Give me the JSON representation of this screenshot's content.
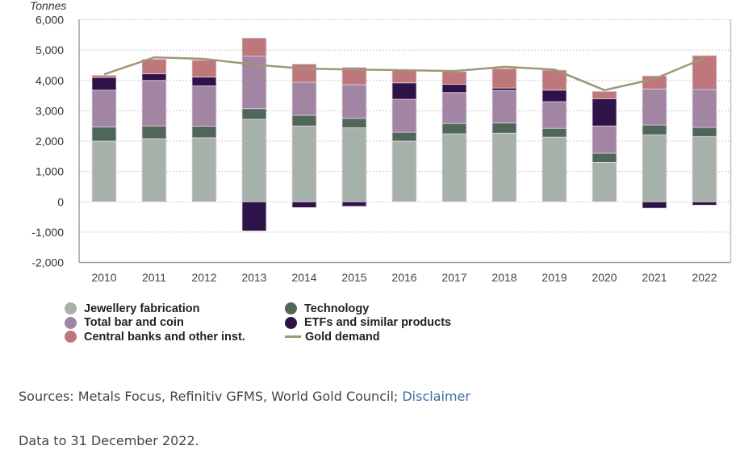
{
  "chart_data": {
    "type": "bar",
    "stacked": true,
    "unit_label": "Tonnes",
    "categories": [
      "2010",
      "2011",
      "2012",
      "2013",
      "2014",
      "2015",
      "2016",
      "2017",
      "2018",
      "2019",
      "2020",
      "2021",
      "2022"
    ],
    "ylim": [
      -2000,
      6000
    ],
    "yticks": [
      6000,
      5000,
      4000,
      3000,
      2000,
      1000,
      0,
      -1000,
      -2000
    ],
    "ytick_labels": [
      "6,000",
      "5,000",
      "4,000",
      "3,000",
      "2,000",
      "1,000",
      "0",
      "-1,000",
      "-2,000"
    ],
    "grid": true,
    "series": [
      {
        "name": "Jewellery fabrication",
        "color": "#a6b1aa",
        "values": [
          2000,
          2080,
          2110,
          2720,
          2500,
          2440,
          2000,
          2240,
          2260,
          2130,
          1300,
          2210,
          2150
        ]
      },
      {
        "name": "Technology",
        "color": "#4e6759",
        "values": [
          470,
          420,
          380,
          350,
          350,
          310,
          290,
          340,
          340,
          290,
          300,
          320,
          300
        ]
      },
      {
        "name": "Total bar and coin",
        "color": "#a185a3",
        "values": [
          1210,
          1500,
          1330,
          1730,
          1090,
          1110,
          1090,
          1020,
          1070,
          880,
          900,
          1190,
          1250
        ]
      },
      {
        "name": "ETFs and similar products",
        "color": "#2e1349",
        "values": [
          420,
          220,
          290,
          -960,
          -190,
          -150,
          540,
          270,
          80,
          380,
          900,
          -210,
          -110
        ]
      },
      {
        "name": "Central banks and other inst.",
        "color": "#be777a",
        "values": [
          70,
          480,
          560,
          600,
          600,
          570,
          420,
          420,
          640,
          660,
          240,
          430,
          1120
        ]
      }
    ],
    "line_series": {
      "name": "Gold demand",
      "color": "#a09674",
      "values": [
        4200,
        4760,
        4710,
        4520,
        4390,
        4360,
        4340,
        4310,
        4450,
        4360,
        3680,
        4050,
        4740
      ]
    },
    "legend": [
      {
        "name": "Jewellery fabrication",
        "color": "#a6b1aa",
        "kind": "dot"
      },
      {
        "name": "Total bar and coin",
        "color": "#a185a3",
        "kind": "dot"
      },
      {
        "name": "Central banks and other inst.",
        "color": "#be777a",
        "kind": "dot"
      },
      {
        "name": "Technology",
        "color": "#4e6759",
        "kind": "dot"
      },
      {
        "name": "ETFs and similar products",
        "color": "#2e1349",
        "kind": "dot"
      },
      {
        "name": "Gold demand",
        "color": "#a09674",
        "kind": "line"
      }
    ],
    "legend_position": "bottom-left"
  },
  "footer": {
    "sources_text": "Sources: Metals Focus, Refinitiv GFMS, World Gold Council; ",
    "disclaimer_link": "Disclaimer",
    "data_note": "Data to 31 December 2022."
  }
}
